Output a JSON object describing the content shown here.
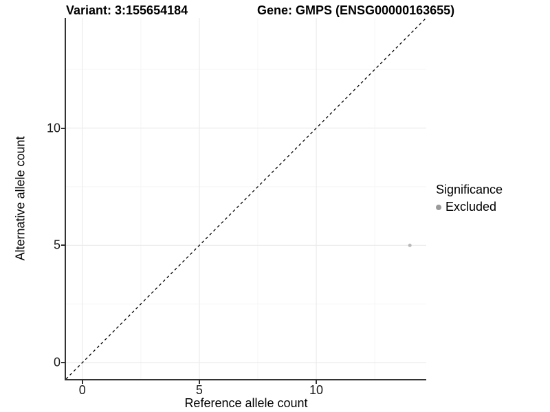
{
  "titles": {
    "variant": "Variant: 3:155654184",
    "gene": "Gene: GMPS (ENSG00000163655)"
  },
  "chart_data": {
    "type": "scatter",
    "title_left": "Variant: 3:155654184",
    "title_right": "Gene: GMPS (ENSG00000163655)",
    "xlabel": "Reference allele count",
    "ylabel": "Alternative allele count",
    "xlim": [
      -0.7,
      14.7
    ],
    "ylim": [
      -0.7,
      14.7
    ],
    "x_major_ticks": [
      0,
      5,
      10
    ],
    "y_major_ticks": [
      0,
      5,
      10
    ],
    "x_minor_ticks": [
      2.5,
      7.5,
      12.5
    ],
    "y_minor_ticks": [
      2.5,
      7.5,
      12.5
    ],
    "grid": "major+minor",
    "points": [
      {
        "x": 14,
        "y": 5,
        "series": "Excluded"
      }
    ],
    "reference_line": {
      "kind": "abline",
      "slope": 1,
      "intercept": 0,
      "style": "dashed",
      "color": "#000000"
    },
    "legend": {
      "title": "Significance",
      "position": "right",
      "items": [
        {
          "label": "Excluded",
          "color": "#9a9a9a"
        }
      ]
    },
    "colors": {
      "point": "#b9b9b9",
      "grid_major": "#ebebeb",
      "grid_minor": "#f5f5f5",
      "axis_line": "#333333",
      "tick_text": "#1a1a1a"
    }
  }
}
